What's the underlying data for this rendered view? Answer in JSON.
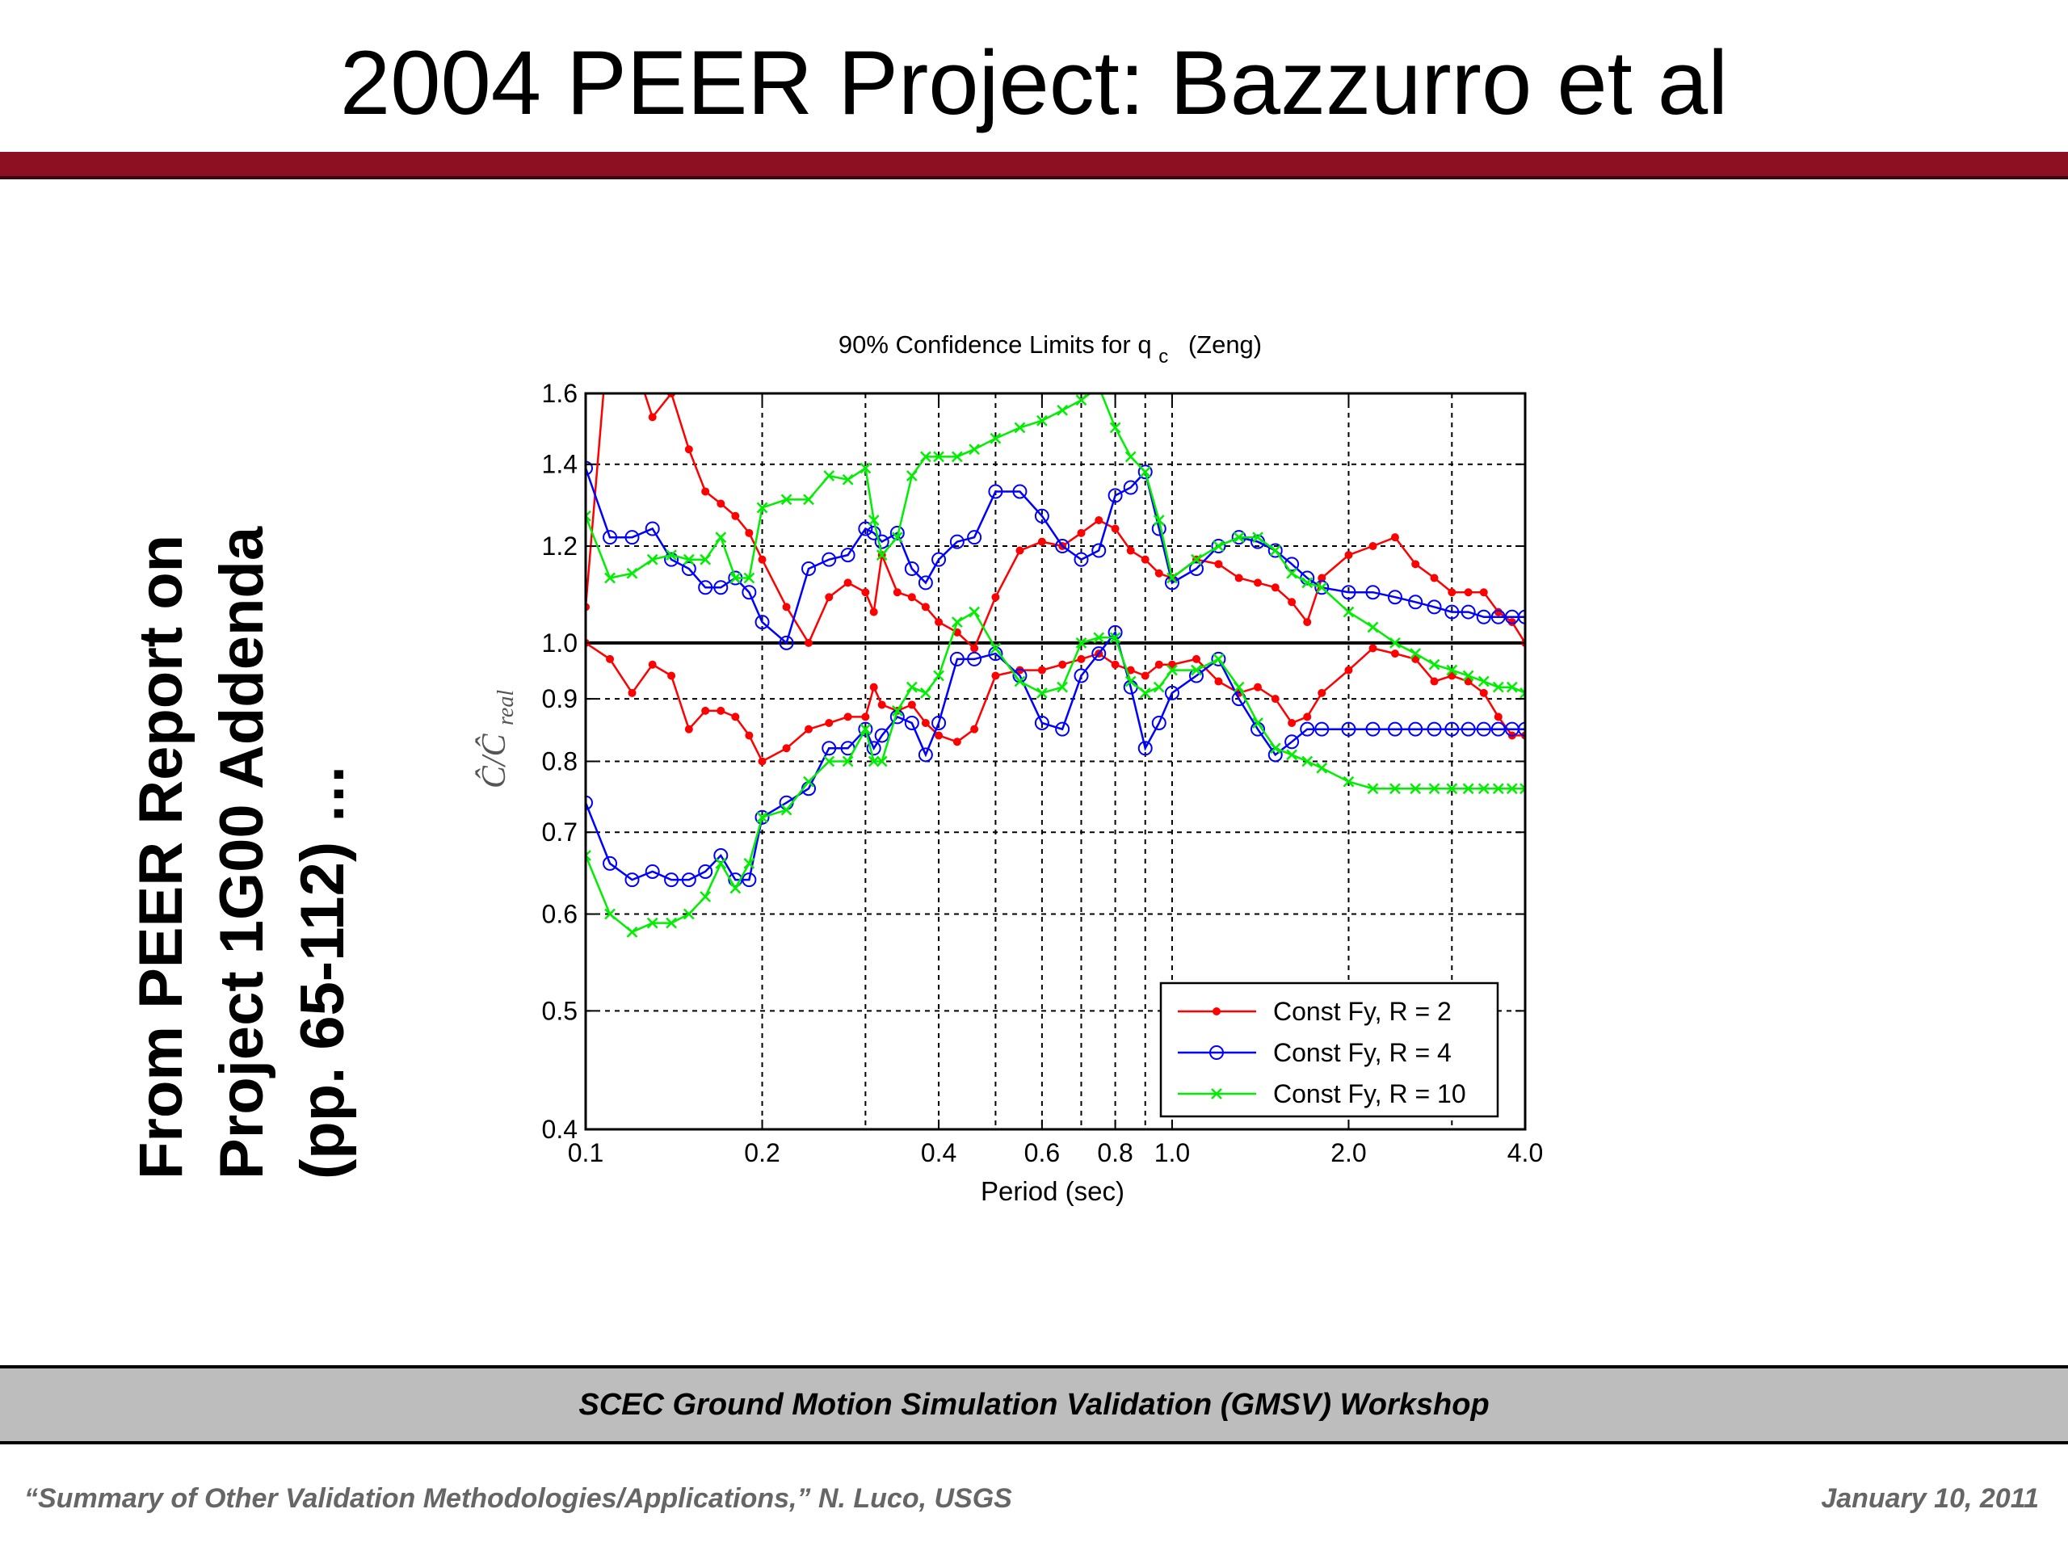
{
  "slide": {
    "title": "2004 PEER Project: Bazzurro et al",
    "side_note_lines": [
      "From PEER Report on",
      "Project 1G00 Addenda",
      "(pp. 65-112) …"
    ]
  },
  "footer": {
    "workshop": "SCEC Ground Motion Simulation Validation (GMSV) Workshop",
    "citation": "“Summary of Other Validation Methodologies/Applications,” N. Luco, USGS",
    "date": "January 10, 2011"
  },
  "colors": {
    "accent_bar": "#8c1022",
    "footer_bg": "#bdbdbd",
    "r2": "#ff0000",
    "r4": "#0000ff",
    "r10": "#00ee00"
  },
  "chart_data": {
    "type": "line",
    "title_main": "90% Confidence Limits for q",
    "title_sub": "c",
    "title_tail": "(Zeng)",
    "xlabel": "Period (sec)",
    "ylabel_main": "Ĉ/Ĉ",
    "ylabel_sub": "real",
    "x_scale": "log",
    "y_scale": "log",
    "xlim": [
      0.1,
      4.0
    ],
    "ylim": [
      0.4,
      1.6
    ],
    "x_ticks": [
      0.1,
      0.2,
      0.4,
      0.6,
      0.8,
      1.0,
      2.0,
      4.0
    ],
    "x_tick_labels": [
      "0.1",
      "0.2",
      "0.4",
      "0.6",
      "0.8",
      "1.0",
      "2.0",
      "4.0"
    ],
    "x_grid": [
      0.2,
      0.3,
      0.4,
      0.5,
      0.6,
      0.7,
      0.8,
      0.9,
      1.0,
      2.0,
      3.0
    ],
    "y_ticks": [
      0.4,
      0.5,
      0.6,
      0.7,
      0.8,
      0.9,
      1.0,
      1.2,
      1.4,
      1.6
    ],
    "y_tick_labels": [
      "0.4",
      "0.5",
      "0.6",
      "0.7",
      "0.8",
      "0.9",
      "1.0",
      "1.2",
      "1.4",
      "1.6"
    ],
    "reference_line": 1.0,
    "grid": true,
    "legend_position": "bottom-right",
    "series": [
      {
        "name": "Const Fy, R = 2",
        "marker": "dot",
        "color": "#ff0000",
        "upper": {
          "x": [
            0.1,
            0.11,
            0.12,
            0.13,
            0.14,
            0.15,
            0.16,
            0.17,
            0.18,
            0.19,
            0.2,
            0.22,
            0.24,
            0.26,
            0.28,
            0.3,
            0.31,
            0.32,
            0.34,
            0.36,
            0.38,
            0.4,
            0.43,
            0.46,
            0.5,
            0.55,
            0.6,
            0.65,
            0.7,
            0.75,
            0.8,
            0.85,
            0.9,
            0.95,
            1.0,
            1.1,
            1.2,
            1.3,
            1.4,
            1.5,
            1.6,
            1.7,
            1.8,
            2.0,
            2.2,
            2.4,
            2.6,
            2.8,
            3.0,
            3.2,
            3.4,
            3.6,
            3.8,
            4.0
          ],
          "y": [
            1.07,
            1.85,
            1.72,
            1.53,
            1.6,
            1.44,
            1.33,
            1.3,
            1.27,
            1.23,
            1.17,
            1.07,
            1.0,
            1.09,
            1.12,
            1.1,
            1.06,
            1.18,
            1.1,
            1.09,
            1.07,
            1.04,
            1.02,
            0.99,
            1.09,
            1.19,
            1.21,
            1.2,
            1.23,
            1.26,
            1.24,
            1.19,
            1.17,
            1.14,
            1.13,
            1.17,
            1.16,
            1.13,
            1.12,
            1.11,
            1.08,
            1.04,
            1.13,
            1.18,
            1.2,
            1.22,
            1.16,
            1.13,
            1.1,
            1.1,
            1.1,
            1.06,
            1.04,
            1.0
          ]
        },
        "lower": {
          "x": [
            0.1,
            0.11,
            0.12,
            0.13,
            0.14,
            0.15,
            0.16,
            0.17,
            0.18,
            0.19,
            0.2,
            0.22,
            0.24,
            0.26,
            0.28,
            0.3,
            0.31,
            0.32,
            0.34,
            0.36,
            0.38,
            0.4,
            0.43,
            0.46,
            0.5,
            0.55,
            0.6,
            0.65,
            0.7,
            0.75,
            0.8,
            0.85,
            0.9,
            0.95,
            1.0,
            1.1,
            1.2,
            1.3,
            1.4,
            1.5,
            1.6,
            1.7,
            1.8,
            2.0,
            2.2,
            2.4,
            2.6,
            2.8,
            3.0,
            3.2,
            3.4,
            3.6,
            3.8,
            4.0
          ],
          "y": [
            1.0,
            0.97,
            0.91,
            0.96,
            0.94,
            0.85,
            0.88,
            0.88,
            0.87,
            0.84,
            0.8,
            0.82,
            0.85,
            0.86,
            0.87,
            0.87,
            0.92,
            0.89,
            0.88,
            0.89,
            0.86,
            0.84,
            0.83,
            0.85,
            0.94,
            0.95,
            0.95,
            0.96,
            0.97,
            0.98,
            0.96,
            0.95,
            0.94,
            0.96,
            0.96,
            0.97,
            0.93,
            0.91,
            0.92,
            0.9,
            0.86,
            0.87,
            0.91,
            0.95,
            0.99,
            0.98,
            0.97,
            0.93,
            0.94,
            0.93,
            0.91,
            0.87,
            0.84,
            0.84
          ]
        }
      },
      {
        "name": "Const Fy, R = 4",
        "marker": "circle",
        "color": "#0000ff",
        "upper": {
          "x": [
            0.1,
            0.11,
            0.12,
            0.13,
            0.14,
            0.15,
            0.16,
            0.17,
            0.18,
            0.19,
            0.2,
            0.22,
            0.24,
            0.26,
            0.28,
            0.3,
            0.31,
            0.32,
            0.34,
            0.36,
            0.38,
            0.4,
            0.43,
            0.46,
            0.5,
            0.55,
            0.6,
            0.65,
            0.7,
            0.75,
            0.8,
            0.85,
            0.9,
            0.95,
            1.0,
            1.1,
            1.2,
            1.3,
            1.4,
            1.5,
            1.6,
            1.7,
            1.8,
            2.0,
            2.2,
            2.4,
            2.6,
            2.8,
            3.0,
            3.2,
            3.4,
            3.6,
            3.8,
            4.0
          ],
          "y": [
            1.39,
            1.22,
            1.22,
            1.24,
            1.17,
            1.15,
            1.11,
            1.11,
            1.13,
            1.1,
            1.04,
            1.0,
            1.15,
            1.17,
            1.18,
            1.24,
            1.23,
            1.21,
            1.23,
            1.15,
            1.12,
            1.17,
            1.21,
            1.22,
            1.33,
            1.33,
            1.27,
            1.2,
            1.17,
            1.19,
            1.32,
            1.34,
            1.38,
            1.24,
            1.12,
            1.15,
            1.2,
            1.22,
            1.21,
            1.19,
            1.16,
            1.13,
            1.11,
            1.1,
            1.1,
            1.09,
            1.08,
            1.07,
            1.06,
            1.06,
            1.05,
            1.05,
            1.05,
            1.05
          ]
        },
        "lower": {
          "x": [
            0.1,
            0.11,
            0.12,
            0.13,
            0.14,
            0.15,
            0.16,
            0.17,
            0.18,
            0.19,
            0.2,
            0.22,
            0.24,
            0.26,
            0.28,
            0.3,
            0.31,
            0.32,
            0.34,
            0.36,
            0.38,
            0.4,
            0.43,
            0.46,
            0.5,
            0.55,
            0.6,
            0.65,
            0.7,
            0.75,
            0.8,
            0.85,
            0.9,
            0.95,
            1.0,
            1.1,
            1.2,
            1.3,
            1.4,
            1.5,
            1.6,
            1.7,
            1.8,
            2.0,
            2.2,
            2.4,
            2.6,
            2.8,
            3.0,
            3.2,
            3.4,
            3.6,
            3.8,
            4.0
          ],
          "y": [
            0.74,
            0.66,
            0.64,
            0.65,
            0.64,
            0.64,
            0.65,
            0.67,
            0.64,
            0.64,
            0.72,
            0.74,
            0.76,
            0.82,
            0.82,
            0.85,
            0.82,
            0.84,
            0.87,
            0.86,
            0.81,
            0.86,
            0.97,
            0.97,
            0.98,
            0.94,
            0.86,
            0.85,
            0.94,
            0.98,
            1.02,
            0.92,
            0.82,
            0.86,
            0.91,
            0.94,
            0.97,
            0.9,
            0.85,
            0.81,
            0.83,
            0.85,
            0.85,
            0.85,
            0.85,
            0.85,
            0.85,
            0.85,
            0.85,
            0.85,
            0.85,
            0.85,
            0.85,
            0.85
          ]
        }
      },
      {
        "name": "Const Fy, R = 10",
        "marker": "x",
        "color": "#00ee00",
        "upper": {
          "x": [
            0.1,
            0.11,
            0.12,
            0.13,
            0.14,
            0.15,
            0.16,
            0.17,
            0.18,
            0.19,
            0.2,
            0.22,
            0.24,
            0.26,
            0.28,
            0.3,
            0.31,
            0.32,
            0.34,
            0.36,
            0.38,
            0.4,
            0.43,
            0.46,
            0.5,
            0.55,
            0.6,
            0.65,
            0.7,
            0.75,
            0.8,
            0.85,
            0.9,
            0.95,
            1.0,
            1.1,
            1.2,
            1.3,
            1.4,
            1.5,
            1.6,
            1.7,
            1.8,
            2.0,
            2.2,
            2.4,
            2.6,
            2.8,
            3.0,
            3.2,
            3.4,
            3.6,
            3.8,
            4.0
          ],
          "y": [
            1.27,
            1.13,
            1.14,
            1.17,
            1.18,
            1.17,
            1.17,
            1.22,
            1.13,
            1.13,
            1.29,
            1.31,
            1.31,
            1.37,
            1.36,
            1.39,
            1.26,
            1.18,
            1.22,
            1.37,
            1.42,
            1.42,
            1.42,
            1.44,
            1.47,
            1.5,
            1.52,
            1.55,
            1.58,
            1.62,
            1.5,
            1.42,
            1.38,
            1.26,
            1.13,
            1.17,
            1.2,
            1.22,
            1.22,
            1.19,
            1.14,
            1.12,
            1.11,
            1.06,
            1.03,
            1.0,
            0.98,
            0.96,
            0.95,
            0.94,
            0.93,
            0.92,
            0.92,
            0.91
          ]
        },
        "lower": {
          "x": [
            0.1,
            0.11,
            0.12,
            0.13,
            0.14,
            0.15,
            0.16,
            0.17,
            0.18,
            0.19,
            0.2,
            0.22,
            0.24,
            0.26,
            0.28,
            0.3,
            0.31,
            0.32,
            0.34,
            0.36,
            0.38,
            0.4,
            0.43,
            0.46,
            0.5,
            0.55,
            0.6,
            0.65,
            0.7,
            0.75,
            0.8,
            0.85,
            0.9,
            0.95,
            1.0,
            1.1,
            1.2,
            1.3,
            1.4,
            1.5,
            1.6,
            1.7,
            1.8,
            2.0,
            2.2,
            2.4,
            2.6,
            2.8,
            3.0,
            3.2,
            3.4,
            3.6,
            3.8,
            4.0
          ],
          "y": [
            0.67,
            0.6,
            0.58,
            0.59,
            0.59,
            0.6,
            0.62,
            0.66,
            0.63,
            0.66,
            0.72,
            0.73,
            0.77,
            0.8,
            0.8,
            0.85,
            0.8,
            0.8,
            0.88,
            0.92,
            0.91,
            0.94,
            1.04,
            1.06,
            0.99,
            0.93,
            0.91,
            0.92,
            1.0,
            1.01,
            1.01,
            0.93,
            0.91,
            0.92,
            0.95,
            0.95,
            0.97,
            0.92,
            0.86,
            0.82,
            0.81,
            0.8,
            0.79,
            0.77,
            0.76,
            0.76,
            0.76,
            0.76,
            0.76,
            0.76,
            0.76,
            0.76,
            0.76,
            0.76
          ]
        }
      }
    ]
  }
}
